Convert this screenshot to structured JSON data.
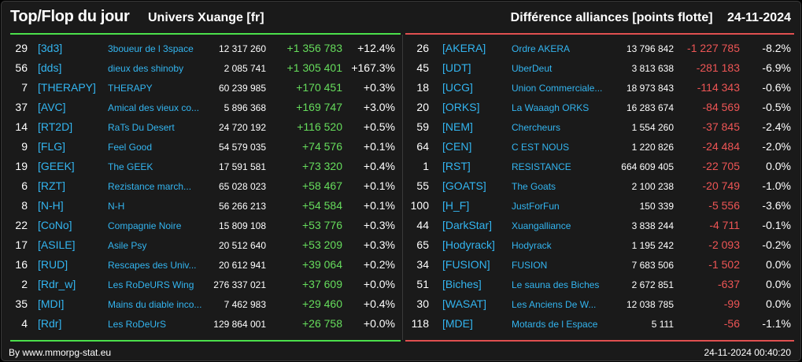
{
  "header": {
    "title": "Top/Flop du jour",
    "server": "Univers Xuange [fr]",
    "subtitle": "Différence alliances [points flotte]",
    "date": "24-11-2024"
  },
  "colors": {
    "gain": "#66dd5c",
    "loss": "#ee5555",
    "tag": "#33b5f0"
  },
  "top": [
    {
      "rank": "29",
      "tag": "[3d3]",
      "name": "3boueur de l 3space",
      "points": "12 317 260",
      "diff": "+1 356 783",
      "pct": "+12.4%"
    },
    {
      "rank": "56",
      "tag": "[dds]",
      "name": "dieux des shinoby",
      "points": "2 085 741",
      "diff": "+1 305 401",
      "pct": "+167.3%"
    },
    {
      "rank": "7",
      "tag": "[THERAPY]",
      "name": "THERAPY",
      "points": "60 239 985",
      "diff": "+170 451",
      "pct": "+0.3%"
    },
    {
      "rank": "37",
      "tag": "[AVC]",
      "name": "Amical des vieux co...",
      "points": "5 896 368",
      "diff": "+169 747",
      "pct": "+3.0%"
    },
    {
      "rank": "14",
      "tag": "[RT2D]",
      "name": "RaTs Du Desert",
      "points": "24 720 192",
      "diff": "+116 520",
      "pct": "+0.5%"
    },
    {
      "rank": "9",
      "tag": "[FLG]",
      "name": "Feel Good",
      "points": "54 579 035",
      "diff": "+74 576",
      "pct": "+0.1%"
    },
    {
      "rank": "19",
      "tag": "[GEEK]",
      "name": "The GEEK",
      "points": "17 591 581",
      "diff": "+73 320",
      "pct": "+0.4%"
    },
    {
      "rank": "6",
      "tag": "[RZT]",
      "name": "Rezistance march...",
      "points": "65 028 023",
      "diff": "+58 467",
      "pct": "+0.1%"
    },
    {
      "rank": "8",
      "tag": "[N-H]",
      "name": "N-H",
      "points": "56 266 213",
      "diff": "+54 584",
      "pct": "+0.1%"
    },
    {
      "rank": "22",
      "tag": "[CoNo]",
      "name": "Compagnie Noire",
      "points": "15 809 108",
      "diff": "+53 776",
      "pct": "+0.3%"
    },
    {
      "rank": "17",
      "tag": "[ASILE]",
      "name": "Asile Psy",
      "points": "20 512 640",
      "diff": "+53 209",
      "pct": "+0.3%"
    },
    {
      "rank": "16",
      "tag": "[RUD]",
      "name": "Rescapes des Univ...",
      "points": "20 612 941",
      "diff": "+39 064",
      "pct": "+0.2%"
    },
    {
      "rank": "2",
      "tag": "[Rdr_w]",
      "name": "Les RoDeURS Wing",
      "points": "276 337 021",
      "diff": "+37 609",
      "pct": "+0.0%"
    },
    {
      "rank": "35",
      "tag": "[MDI]",
      "name": "Mains du diable inco...",
      "points": "7 462 983",
      "diff": "+29 460",
      "pct": "+0.4%"
    },
    {
      "rank": "4",
      "tag": "[Rdr]",
      "name": "Les RoDeUrS",
      "points": "129 864 001",
      "diff": "+26 758",
      "pct": "+0.0%"
    }
  ],
  "flop": [
    {
      "rank": "26",
      "tag": "[AKERA]",
      "name": "Ordre AKERA",
      "points": "13 796 842",
      "diff": "-1 227 785",
      "pct": "-8.2%"
    },
    {
      "rank": "45",
      "tag": "[UDT]",
      "name": "UberDeut",
      "points": "3 813 638",
      "diff": "-281 183",
      "pct": "-6.9%"
    },
    {
      "rank": "18",
      "tag": "[UCG]",
      "name": "Union Commerciale...",
      "points": "18 973 843",
      "diff": "-114 343",
      "pct": "-0.6%"
    },
    {
      "rank": "20",
      "tag": "[ORKS]",
      "name": "La Waaagh ORKS",
      "points": "16 283 674",
      "diff": "-84 569",
      "pct": "-0.5%"
    },
    {
      "rank": "59",
      "tag": "[NEM]",
      "name": "Chercheurs",
      "points": "1 554 260",
      "diff": "-37 845",
      "pct": "-2.4%"
    },
    {
      "rank": "64",
      "tag": "[CEN]",
      "name": "C EST NOUS",
      "points": "1 220 826",
      "diff": "-24 484",
      "pct": "-2.0%"
    },
    {
      "rank": "1",
      "tag": "[RST]",
      "name": "RESISTANCE",
      "points": "664 609 405",
      "diff": "-22 705",
      "pct": "0.0%"
    },
    {
      "rank": "55",
      "tag": "[GOATS]",
      "name": "The Goats",
      "points": "2 100 238",
      "diff": "-20 749",
      "pct": "-1.0%"
    },
    {
      "rank": "100",
      "tag": "[H_F]",
      "name": "JustForFun",
      "points": "150 339",
      "diff": "-5 556",
      "pct": "-3.6%"
    },
    {
      "rank": "44",
      "tag": "[DarkStar]",
      "name": "Xuangalliance",
      "points": "3 838 244",
      "diff": "-4 711",
      "pct": "-0.1%"
    },
    {
      "rank": "65",
      "tag": "[Hodyrack]",
      "name": "Hodyrack",
      "points": "1 195 242",
      "diff": "-2 093",
      "pct": "-0.2%"
    },
    {
      "rank": "34",
      "tag": "[FUSION]",
      "name": "FUSION",
      "points": "7 683 506",
      "diff": "-1 502",
      "pct": "0.0%"
    },
    {
      "rank": "51",
      "tag": "[Biches]",
      "name": "Le sauna des Biches",
      "points": "2 672 851",
      "diff": "-637",
      "pct": "0.0%"
    },
    {
      "rank": "30",
      "tag": "[WASAT]",
      "name": "Les Anciens De W...",
      "points": "12 038 785",
      "diff": "-99",
      "pct": "0.0%"
    },
    {
      "rank": "118",
      "tag": "[MDE]",
      "name": "Motards de l Espace",
      "points": "5 111",
      "diff": "-56",
      "pct": "-1.1%"
    }
  ],
  "footer": {
    "credit": "By www.mmorpg-stat.eu",
    "timestamp": "24-11-2024 00:40:20"
  }
}
